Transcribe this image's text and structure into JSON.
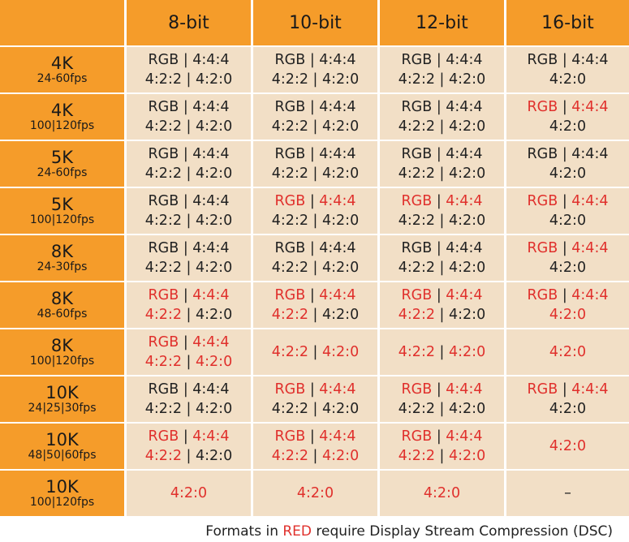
{
  "colors": {
    "accent": "#f59c2a",
    "cell_bg": "#f2dfc6",
    "red": "#e0302c",
    "text": "#222222"
  },
  "columns": [
    "8-bit",
    "10-bit",
    "12-bit",
    "16-bit"
  ],
  "rows": [
    {
      "res": "4K",
      "fps": "24-60fps",
      "cells": [
        [
          [
            [
              "RGB",
              0
            ],
            [
              " | ",
              0
            ],
            [
              "4:4:4",
              0
            ]
          ],
          [
            [
              "4:2:2",
              0
            ],
            [
              " | ",
              0
            ],
            [
              "4:2:0",
              0
            ]
          ]
        ],
        [
          [
            [
              "RGB",
              0
            ],
            [
              " | ",
              0
            ],
            [
              "4:4:4",
              0
            ]
          ],
          [
            [
              "4:2:2",
              0
            ],
            [
              " | ",
              0
            ],
            [
              "4:2:0",
              0
            ]
          ]
        ],
        [
          [
            [
              "RGB",
              0
            ],
            [
              " | ",
              0
            ],
            [
              "4:4:4",
              0
            ]
          ],
          [
            [
              "4:2:2",
              0
            ],
            [
              " | ",
              0
            ],
            [
              "4:2:0",
              0
            ]
          ]
        ],
        [
          [
            [
              "RGB",
              0
            ],
            [
              " | ",
              0
            ],
            [
              "4:4:4",
              0
            ]
          ],
          [
            [
              "4:2:0",
              0
            ]
          ]
        ]
      ]
    },
    {
      "res": "4K",
      "fps": "100|120fps",
      "cells": [
        [
          [
            [
              "RGB",
              0
            ],
            [
              " | ",
              0
            ],
            [
              "4:4:4",
              0
            ]
          ],
          [
            [
              "4:2:2",
              0
            ],
            [
              " | ",
              0
            ],
            [
              "4:2:0",
              0
            ]
          ]
        ],
        [
          [
            [
              "RGB",
              0
            ],
            [
              " | ",
              0
            ],
            [
              "4:4:4",
              0
            ]
          ],
          [
            [
              "4:2:2",
              0
            ],
            [
              " | ",
              0
            ],
            [
              "4:2:0",
              0
            ]
          ]
        ],
        [
          [
            [
              "RGB",
              0
            ],
            [
              " | ",
              0
            ],
            [
              "4:4:4",
              0
            ]
          ],
          [
            [
              "4:2:2",
              0
            ],
            [
              " | ",
              0
            ],
            [
              "4:2:0",
              0
            ]
          ]
        ],
        [
          [
            [
              "RGB",
              1
            ],
            [
              " | ",
              0
            ],
            [
              "4:4:4",
              1
            ]
          ],
          [
            [
              "4:2:0",
              0
            ]
          ]
        ]
      ]
    },
    {
      "res": "5K",
      "fps": "24-60fps",
      "cells": [
        [
          [
            [
              "RGB",
              0
            ],
            [
              " | ",
              0
            ],
            [
              "4:4:4",
              0
            ]
          ],
          [
            [
              "4:2:2",
              0
            ],
            [
              " | ",
              0
            ],
            [
              "4:2:0",
              0
            ]
          ]
        ],
        [
          [
            [
              "RGB",
              0
            ],
            [
              " | ",
              0
            ],
            [
              "4:4:4",
              0
            ]
          ],
          [
            [
              "4:2:2",
              0
            ],
            [
              " | ",
              0
            ],
            [
              "4:2:0",
              0
            ]
          ]
        ],
        [
          [
            [
              "RGB",
              0
            ],
            [
              " | ",
              0
            ],
            [
              "4:4:4",
              0
            ]
          ],
          [
            [
              "4:2:2",
              0
            ],
            [
              " | ",
              0
            ],
            [
              "4:2:0",
              0
            ]
          ]
        ],
        [
          [
            [
              "RGB",
              0
            ],
            [
              " | ",
              0
            ],
            [
              "4:4:4",
              0
            ]
          ],
          [
            [
              "4:2:0",
              0
            ]
          ]
        ]
      ]
    },
    {
      "res": "5K",
      "fps": "100|120fps",
      "cells": [
        [
          [
            [
              "RGB",
              0
            ],
            [
              " | ",
              0
            ],
            [
              "4:4:4",
              0
            ]
          ],
          [
            [
              "4:2:2",
              0
            ],
            [
              " | ",
              0
            ],
            [
              "4:2:0",
              0
            ]
          ]
        ],
        [
          [
            [
              "RGB",
              1
            ],
            [
              " | ",
              0
            ],
            [
              "4:4:4",
              1
            ]
          ],
          [
            [
              "4:2:2",
              0
            ],
            [
              " | ",
              0
            ],
            [
              "4:2:0",
              0
            ]
          ]
        ],
        [
          [
            [
              "RGB",
              1
            ],
            [
              " | ",
              0
            ],
            [
              "4:4:4",
              1
            ]
          ],
          [
            [
              "4:2:2",
              0
            ],
            [
              " | ",
              0
            ],
            [
              "4:2:0",
              0
            ]
          ]
        ],
        [
          [
            [
              "RGB",
              1
            ],
            [
              " | ",
              0
            ],
            [
              "4:4:4",
              1
            ]
          ],
          [
            [
              "4:2:0",
              0
            ]
          ]
        ]
      ]
    },
    {
      "res": "8K",
      "fps": "24-30fps",
      "cells": [
        [
          [
            [
              "RGB",
              0
            ],
            [
              " | ",
              0
            ],
            [
              "4:4:4",
              0
            ]
          ],
          [
            [
              "4:2:2",
              0
            ],
            [
              " | ",
              0
            ],
            [
              "4:2:0",
              0
            ]
          ]
        ],
        [
          [
            [
              "RGB",
              0
            ],
            [
              " | ",
              0
            ],
            [
              "4:4:4",
              0
            ]
          ],
          [
            [
              "4:2:2",
              0
            ],
            [
              " | ",
              0
            ],
            [
              "4:2:0",
              0
            ]
          ]
        ],
        [
          [
            [
              "RGB",
              0
            ],
            [
              " | ",
              0
            ],
            [
              "4:4:4",
              0
            ]
          ],
          [
            [
              "4:2:2",
              0
            ],
            [
              " | ",
              0
            ],
            [
              "4:2:0",
              0
            ]
          ]
        ],
        [
          [
            [
              "RGB",
              1
            ],
            [
              " | ",
              0
            ],
            [
              "4:4:4",
              1
            ]
          ],
          [
            [
              "4:2:0",
              0
            ]
          ]
        ]
      ]
    },
    {
      "res": "8K",
      "fps": "48-60fps",
      "cells": [
        [
          [
            [
              "RGB",
              1
            ],
            [
              " | ",
              0
            ],
            [
              "4:4:4",
              1
            ]
          ],
          [
            [
              "4:2:2",
              1
            ],
            [
              " | ",
              0
            ],
            [
              "4:2:0",
              0
            ]
          ]
        ],
        [
          [
            [
              "RGB",
              1
            ],
            [
              " | ",
              0
            ],
            [
              "4:4:4",
              1
            ]
          ],
          [
            [
              "4:2:2",
              1
            ],
            [
              " | ",
              0
            ],
            [
              "4:2:0",
              0
            ]
          ]
        ],
        [
          [
            [
              "RGB",
              1
            ],
            [
              " | ",
              0
            ],
            [
              "4:4:4",
              1
            ]
          ],
          [
            [
              "4:2:2",
              1
            ],
            [
              " | ",
              0
            ],
            [
              "4:2:0",
              0
            ]
          ]
        ],
        [
          [
            [
              "RGB",
              1
            ],
            [
              " | ",
              0
            ],
            [
              "4:4:4",
              1
            ]
          ],
          [
            [
              "4:2:0",
              1
            ]
          ]
        ]
      ]
    },
    {
      "res": "8K",
      "fps": "100|120fps",
      "cells": [
        [
          [
            [
              "RGB",
              1
            ],
            [
              " | ",
              0
            ],
            [
              "4:4:4",
              1
            ]
          ],
          [
            [
              "4:2:2",
              1
            ],
            [
              " | ",
              0
            ],
            [
              "4:2:0",
              1
            ]
          ]
        ],
        [
          [
            [
              "4:2:2",
              1
            ],
            [
              " | ",
              0
            ],
            [
              "4:2:0",
              1
            ]
          ]
        ],
        [
          [
            [
              "4:2:2",
              1
            ],
            [
              " | ",
              0
            ],
            [
              "4:2:0",
              1
            ]
          ]
        ],
        [
          [
            [
              "4:2:0",
              1
            ]
          ]
        ]
      ]
    },
    {
      "res": "10K",
      "fps": "24|25|30fps",
      "cells": [
        [
          [
            [
              "RGB",
              0
            ],
            [
              " | ",
              0
            ],
            [
              "4:4:4",
              0
            ]
          ],
          [
            [
              "4:2:2",
              0
            ],
            [
              " | ",
              0
            ],
            [
              "4:2:0",
              0
            ]
          ]
        ],
        [
          [
            [
              "RGB",
              1
            ],
            [
              " | ",
              0
            ],
            [
              "4:4:4",
              1
            ]
          ],
          [
            [
              "4:2:2",
              0
            ],
            [
              " | ",
              0
            ],
            [
              "4:2:0",
              0
            ]
          ]
        ],
        [
          [
            [
              "RGB",
              1
            ],
            [
              " | ",
              0
            ],
            [
              "4:4:4",
              1
            ]
          ],
          [
            [
              "4:2:2",
              0
            ],
            [
              " | ",
              0
            ],
            [
              "4:2:0",
              0
            ]
          ]
        ],
        [
          [
            [
              "RGB",
              1
            ],
            [
              " | ",
              0
            ],
            [
              "4:4:4",
              1
            ]
          ],
          [
            [
              "4:2:0",
              0
            ]
          ]
        ]
      ]
    },
    {
      "res": "10K",
      "fps": "48|50|60fps",
      "cells": [
        [
          [
            [
              "RGB",
              1
            ],
            [
              " | ",
              0
            ],
            [
              "4:4:4",
              1
            ]
          ],
          [
            [
              "4:2:2",
              1
            ],
            [
              " | ",
              0
            ],
            [
              "4:2:0",
              0
            ]
          ]
        ],
        [
          [
            [
              "RGB",
              1
            ],
            [
              " | ",
              0
            ],
            [
              "4:4:4",
              1
            ]
          ],
          [
            [
              "4:2:2",
              1
            ],
            [
              " | ",
              0
            ],
            [
              "4:2:0",
              1
            ]
          ]
        ],
        [
          [
            [
              "RGB",
              1
            ],
            [
              " | ",
              0
            ],
            [
              "4:4:4",
              1
            ]
          ],
          [
            [
              "4:2:2",
              1
            ],
            [
              " | ",
              0
            ],
            [
              "4:2:0",
              1
            ]
          ]
        ],
        [
          [
            [
              "4:2:0",
              1
            ]
          ]
        ]
      ]
    },
    {
      "res": "10K",
      "fps": "100|120fps",
      "cells": [
        [
          [
            [
              "4:2:0",
              1
            ]
          ]
        ],
        [
          [
            [
              "4:2:0",
              1
            ]
          ]
        ],
        [
          [
            [
              "4:2:0",
              1
            ]
          ]
        ],
        [
          [
            [
              "–",
              0
            ]
          ]
        ]
      ]
    }
  ],
  "footnote": {
    "prefix": "Formats in ",
    "highlight": "RED",
    "suffix": " require Display Stream Compression (DSC)"
  }
}
